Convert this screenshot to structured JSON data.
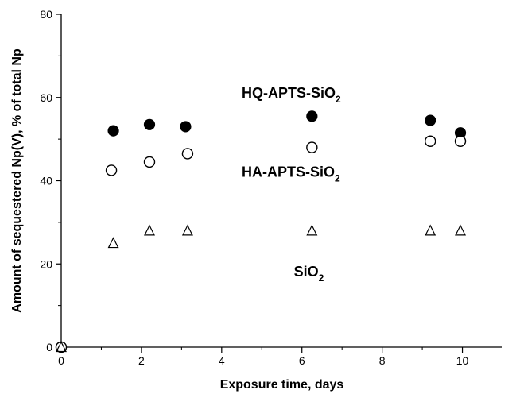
{
  "chart_data": {
    "type": "scatter",
    "xlabel": "Exposure time, days",
    "ylabel": "Amount of sequestered Np(V), % of total Np",
    "xlim": [
      0,
      11
    ],
    "ylim": [
      0,
      80
    ],
    "x_ticks": [
      0,
      2,
      4,
      6,
      8,
      10
    ],
    "y_ticks": [
      0,
      20,
      40,
      60,
      80
    ],
    "grid": false,
    "legend": "none",
    "series": [
      {
        "marker": "filled-circle",
        "points": [
          [
            0,
            0
          ],
          [
            1.3,
            52
          ],
          [
            2.2,
            53.5
          ],
          [
            3.1,
            53
          ],
          [
            6.25,
            55.5
          ],
          [
            9.2,
            54.5
          ],
          [
            9.95,
            51.5
          ]
        ]
      },
      {
        "marker": "open-circle",
        "points": [
          [
            0,
            0
          ],
          [
            1.25,
            42.5
          ],
          [
            2.2,
            44.5
          ],
          [
            3.15,
            46.5
          ],
          [
            6.25,
            48
          ],
          [
            9.2,
            49.5
          ],
          [
            9.95,
            49.5
          ]
        ]
      },
      {
        "marker": "open-triangle",
        "points": [
          [
            0,
            0
          ],
          [
            1.3,
            25
          ],
          [
            2.2,
            28
          ],
          [
            3.15,
            28
          ],
          [
            6.25,
            28
          ],
          [
            9.2,
            28
          ],
          [
            9.95,
            28
          ]
        ]
      }
    ],
    "annotations": [
      {
        "main": "HQ-APTS-SiO",
        "sub": "2",
        "x": 4.5,
        "y": 60
      },
      {
        "main": "HA-APTS-SiO",
        "sub": "2",
        "x": 4.5,
        "y": 41
      },
      {
        "main": "SiO",
        "sub": "2",
        "x": 5.8,
        "y": 17
      }
    ],
    "colors": {
      "axis": "#000000",
      "marker": "#000000",
      "background": "#ffffff"
    }
  }
}
